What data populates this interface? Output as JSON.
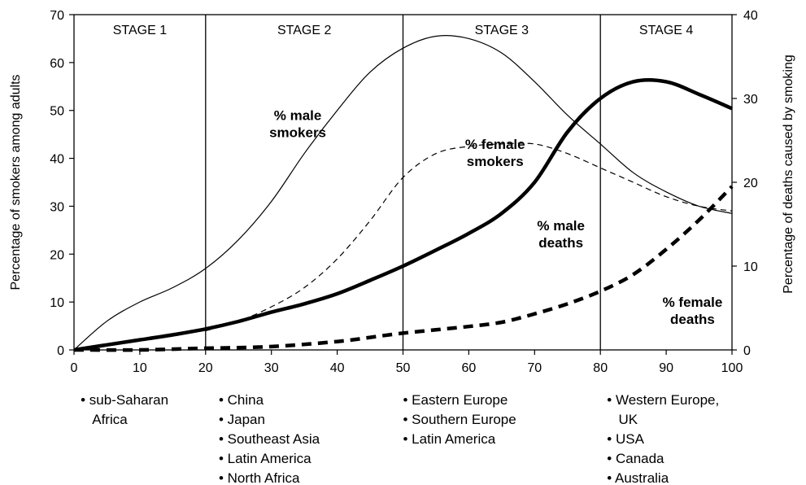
{
  "chart_data": {
    "type": "line",
    "x_ticks": [
      0,
      10,
      20,
      30,
      40,
      50,
      60,
      70,
      80,
      90,
      100
    ],
    "xlim": [
      0,
      100
    ],
    "ylim_left": [
      0,
      70
    ],
    "ylim_right": [
      0,
      40
    ],
    "y_left_ticks": [
      0,
      10,
      20,
      30,
      40,
      50,
      60,
      70
    ],
    "y_right_ticks": [
      0,
      10,
      20,
      30,
      40
    ],
    "ylabel_left": "Percentage of smokers among adults",
    "ylabel_right": "Percentage of deaths caused by smoking",
    "grid": false,
    "stage_boundaries": [
      20,
      50,
      80
    ],
    "stages": [
      {
        "label": "STAGE 1",
        "x_center": 10
      },
      {
        "label": "STAGE 2",
        "x_center": 35
      },
      {
        "label": "STAGE 3",
        "x_center": 65
      },
      {
        "label": "STAGE 4",
        "x_center": 90
      }
    ],
    "series": [
      {
        "name": "% male smokers",
        "axis": "left",
        "style": "thin-solid",
        "x": [
          0,
          5,
          10,
          15,
          20,
          25,
          30,
          35,
          40,
          45,
          50,
          55,
          60,
          65,
          70,
          75,
          80,
          85,
          90,
          95,
          100
        ],
        "y": [
          0,
          6,
          10,
          13,
          17,
          23,
          31,
          41,
          50,
          58,
          63,
          65.5,
          65,
          62,
          56,
          49,
          43,
          37,
          33,
          30,
          28.5
        ]
      },
      {
        "name": "% female smokers",
        "axis": "left",
        "style": "thin-dashed",
        "x": [
          20,
          25,
          30,
          35,
          40,
          45,
          50,
          55,
          60,
          65,
          70,
          75,
          80,
          85,
          90,
          95,
          100
        ],
        "y": [
          4,
          6,
          9,
          13,
          19,
          27,
          36,
          41,
          42.5,
          43,
          43,
          41,
          38,
          35,
          32,
          30,
          29
        ]
      },
      {
        "name": "% male deaths",
        "axis": "right",
        "style": "thick-solid",
        "x": [
          0,
          5,
          10,
          15,
          20,
          25,
          30,
          35,
          40,
          45,
          50,
          55,
          60,
          65,
          70,
          75,
          80,
          85,
          90,
          95,
          100
        ],
        "y": [
          0,
          0.6,
          1.2,
          1.8,
          2.5,
          3.4,
          4.5,
          5.5,
          6.7,
          8.3,
          10,
          11.9,
          13.9,
          16.3,
          20,
          26,
          30,
          32,
          32,
          30.5,
          28.8
        ]
      },
      {
        "name": "% female deaths",
        "axis": "right",
        "style": "thick-dashed",
        "x": [
          0,
          10,
          20,
          30,
          40,
          45,
          50,
          55,
          60,
          65,
          70,
          75,
          80,
          85,
          90,
          95,
          100
        ],
        "y": [
          0,
          0,
          0.2,
          0.4,
          1,
          1.5,
          2,
          2.4,
          2.8,
          3.3,
          4.3,
          5.5,
          7,
          9,
          12,
          15.5,
          19.5
        ]
      }
    ],
    "annotations": [
      {
        "lines": [
          "% male",
          "smokers"
        ],
        "x": 34,
        "y": 48,
        "axis": "left"
      },
      {
        "lines": [
          "% female",
          "smokers"
        ],
        "x": 64,
        "y": 42,
        "axis": "left"
      },
      {
        "lines": [
          "% male",
          "deaths"
        ],
        "x": 74,
        "y": 25,
        "axis": "left"
      },
      {
        "lines": [
          "% female",
          "deaths"
        ],
        "x": 94,
        "y": 9,
        "axis": "left"
      }
    ],
    "region_lists": [
      {
        "x": 1,
        "items": [
          "• sub-Saharan",
          "  Africa"
        ]
      },
      {
        "x": 22,
        "items": [
          "• China",
          "• Japan",
          "• Southeast Asia",
          "• Latin America",
          "• North Africa"
        ]
      },
      {
        "x": 50,
        "items": [
          "• Eastern Europe",
          "• Southern Europe",
          "• Latin America"
        ]
      },
      {
        "x": 81,
        "items": [
          "• Western Europe,",
          "  UK",
          "• USA",
          "• Canada",
          "• Australia"
        ]
      }
    ]
  }
}
